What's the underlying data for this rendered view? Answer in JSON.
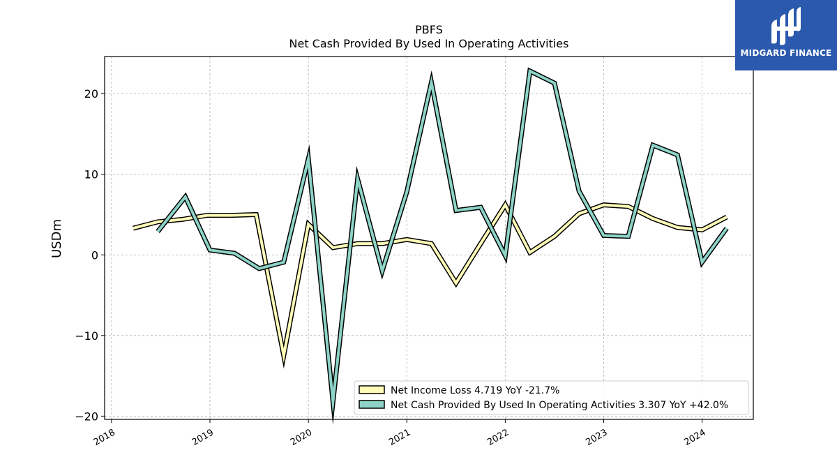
{
  "chart_data": {
    "type": "line",
    "title": "PBFS",
    "subtitle": "Net Cash Provided By Used In Operating Activities",
    "ylabel": "USDm",
    "xlabel": "",
    "xlim": [
      2017.93,
      2024.52
    ],
    "ylim": [
      -20.4,
      24.6
    ],
    "yticks": [
      -20,
      -10,
      0,
      10,
      20
    ],
    "ytick_labels": [
      "−20",
      "−10",
      "0",
      "10",
      "20"
    ],
    "xticks": [
      2018,
      2019,
      2020,
      2021,
      2022,
      2023,
      2024
    ],
    "xtick_labels": [
      "2018",
      "2019",
      "2020",
      "2021",
      "2022",
      "2023",
      "2024"
    ],
    "grid": true,
    "legend_position": "lower-right",
    "series": [
      {
        "name": "Net Income Loss",
        "legend_label": "Net Income Loss  4.719 YoY -21.7%",
        "color": "#fffbb8",
        "x": [
          2018.22,
          2018.47,
          2018.72,
          2018.97,
          2019.22,
          2019.47,
          2019.75,
          2020.0,
          2020.25,
          2020.5,
          2020.75,
          2021.0,
          2021.25,
          2021.5,
          2021.75,
          2022.0,
          2022.25,
          2022.5,
          2022.75,
          2023.0,
          2023.25,
          2023.5,
          2023.75,
          2024.0,
          2024.25
        ],
        "values": [
          3.3,
          4.1,
          4.4,
          4.9,
          4.9,
          5.0,
          -12.5,
          3.8,
          0.9,
          1.4,
          1.4,
          1.9,
          1.4,
          -3.5,
          1.4,
          6.2,
          0.3,
          2.3,
          5.1,
          6.2,
          6.0,
          4.5,
          3.4,
          3.1,
          4.7
        ]
      },
      {
        "name": "Net Cash Provided By Used In Operating Activities",
        "legend_label": "Net Cash Provided By Used In Operating Activities  3.307 YoY +42.0%",
        "color": "#8dd3c7",
        "x": [
          2018.47,
          2018.75,
          2019.0,
          2019.25,
          2019.5,
          2019.75,
          2020.0,
          2020.25,
          2020.5,
          2020.75,
          2021.0,
          2021.25,
          2021.5,
          2021.75,
          2022.0,
          2022.25,
          2022.5,
          2022.75,
          2023.0,
          2023.25,
          2023.5,
          2023.75,
          2024.0,
          2024.25
        ],
        "values": [
          2.9,
          7.2,
          0.6,
          0.2,
          -1.7,
          -0.9,
          11.9,
          -18.2,
          9.4,
          -2.0,
          7.8,
          21.4,
          5.5,
          5.9,
          -0.1,
          22.8,
          21.3,
          7.9,
          2.4,
          2.3,
          13.6,
          12.4,
          -0.9,
          3.3
        ]
      }
    ]
  },
  "logo": {
    "text": "MIDGARD FINANCE",
    "bg_color": "#2a59ad"
  }
}
